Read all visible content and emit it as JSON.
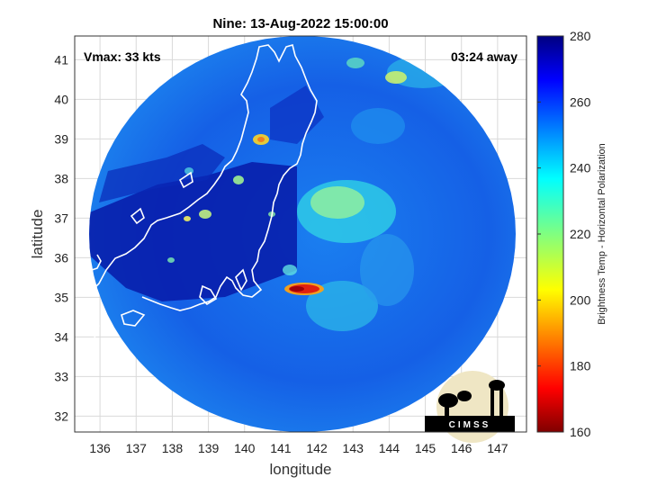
{
  "title": "Nine: 13-Aug-2022 15:00:00",
  "xlabel": "longitude",
  "ylabel": "latitude",
  "annotation_left": "Vmax: 33 kts",
  "annotation_right": "03:24 away",
  "colorbar_label": "Brightness Temp - Horizontal Polarization",
  "logo_text": "CIMSS",
  "map": {
    "lon_range": [
      135.3,
      147.8
    ],
    "lat_range": [
      31.6,
      41.6
    ],
    "lon_ticks": [
      136,
      137,
      138,
      139,
      140,
      141,
      142,
      143,
      144,
      145,
      146,
      147
    ],
    "lat_ticks": [
      32,
      33,
      34,
      35,
      36,
      37,
      38,
      39,
      40,
      41
    ],
    "swath_center": [
      141.6,
      36.6
    ],
    "swath_radius_deg": 5.0,
    "coastline_color": "#ffffff"
  },
  "colorbar": {
    "min": 160,
    "max": 280,
    "ticks": [
      160,
      180,
      200,
      220,
      240,
      260,
      280
    ],
    "colormap": "jet"
  }
}
